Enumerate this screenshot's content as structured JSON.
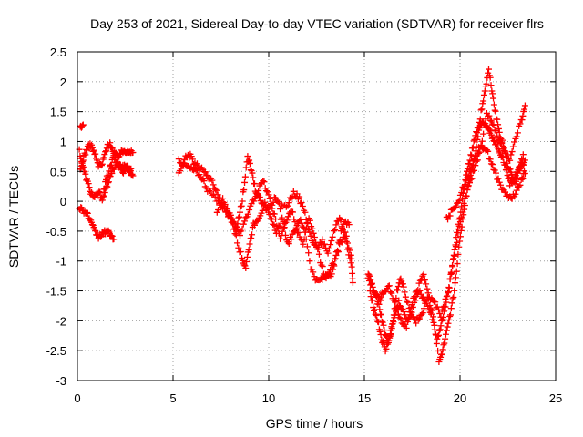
{
  "chart_data": {
    "type": "scatter",
    "title": "Day 253 of 2021, Sidereal Day-to-day VTEC variation (SDTVAR) for receiver flrs",
    "xlabel": "GPS time / hours",
    "ylabel": "SDTVAR / TECUs",
    "xlim": [
      0,
      25
    ],
    "ylim": [
      -3,
      2.5
    ],
    "xticks": [
      "0",
      "5",
      "10",
      "15",
      "20",
      "25"
    ],
    "yticks": [
      "2.5",
      "2",
      "1.5",
      "1",
      "0.5",
      "0",
      "-0.5",
      "-1",
      "-1.5",
      "-2",
      "-2.5",
      "-3"
    ],
    "grid": true,
    "marker": "plus",
    "series": [
      {
        "name": "SDTVAR",
        "color": "#ff0000",
        "tracks": [
          [
            [
              0.15,
              1.25
            ],
            [
              0.3,
              1.28
            ]
          ],
          [
            [
              0.1,
              0.85
            ],
            [
              0.3,
              0.55
            ],
            [
              0.5,
              0.35
            ],
            [
              0.7,
              0.15
            ],
            [
              0.9,
              0.05
            ],
            [
              1.1,
              0.15
            ],
            [
              1.3,
              0.05
            ],
            [
              1.5,
              0.35
            ],
            [
              1.7,
              0.55
            ],
            [
              1.9,
              0.75
            ],
            [
              2.1,
              0.62
            ],
            [
              2.3,
              0.55
            ],
            [
              2.5,
              0.62
            ],
            [
              2.7,
              0.5
            ],
            [
              2.9,
              0.45
            ]
          ],
          [
            [
              0.15,
              0.5
            ],
            [
              0.3,
              0.72
            ],
            [
              0.5,
              0.88
            ],
            [
              0.7,
              0.95
            ],
            [
              0.9,
              0.8
            ],
            [
              1.1,
              0.6
            ],
            [
              1.3,
              0.62
            ],
            [
              1.5,
              0.88
            ],
            [
              1.7,
              0.98
            ],
            [
              1.9,
              0.8
            ],
            [
              2.1,
              0.75
            ],
            [
              2.3,
              0.82
            ],
            [
              2.5,
              0.85
            ],
            [
              2.7,
              0.85
            ],
            [
              2.9,
              0.8
            ]
          ],
          [
            [
              0.1,
              -0.1
            ],
            [
              0.3,
              -0.15
            ],
            [
              0.5,
              -0.2
            ],
            [
              0.7,
              -0.35
            ],
            [
              0.9,
              -0.5
            ],
            [
              1.1,
              -0.6
            ],
            [
              1.3,
              -0.55
            ],
            [
              1.5,
              -0.5
            ],
            [
              1.7,
              -0.55
            ],
            [
              1.9,
              -0.62
            ]
          ],
          [
            [
              1.4,
              0.1
            ],
            [
              1.6,
              0.3
            ],
            [
              1.8,
              0.5
            ],
            [
              2.0,
              0.62
            ],
            [
              2.2,
              0.62
            ],
            [
              2.4,
              0.5
            ],
            [
              2.6,
              0.6
            ],
            [
              2.8,
              0.52
            ]
          ],
          [
            [
              5.3,
              0.7
            ],
            [
              5.6,
              0.6
            ],
            [
              5.9,
              0.55
            ],
            [
              6.2,
              0.5
            ],
            [
              6.5,
              0.4
            ],
            [
              6.8,
              0.2
            ],
            [
              7.2,
              0.05
            ],
            [
              7.6,
              -0.1
            ],
            [
              8.0,
              -0.25
            ],
            [
              8.3,
              -0.6
            ],
            [
              8.6,
              -0.95
            ],
            [
              8.8,
              -1.1
            ],
            [
              9.0,
              -0.7
            ],
            [
              9.2,
              -0.4
            ],
            [
              9.5,
              -0.25
            ],
            [
              9.8,
              -0.05
            ],
            [
              10.1,
              -0.3
            ],
            [
              10.4,
              -0.5
            ],
            [
              10.7,
              -0.3
            ],
            [
              11.0,
              -0.7
            ],
            [
              11.3,
              -0.55
            ],
            [
              11.6,
              -0.3
            ],
            [
              11.9,
              -0.5
            ],
            [
              12.2,
              -1.1
            ],
            [
              12.5,
              -1.35
            ],
            [
              12.8,
              -1.3
            ],
            [
              13.1,
              -1.2
            ],
            [
              13.4,
              -1.05
            ],
            [
              13.7,
              -0.75
            ],
            [
              14.0,
              -0.55
            ],
            [
              14.3,
              -0.9
            ],
            [
              14.4,
              -1.35
            ]
          ],
          [
            [
              5.3,
              0.45
            ],
            [
              5.6,
              0.72
            ],
            [
              5.9,
              0.75
            ],
            [
              6.2,
              0.6
            ],
            [
              6.5,
              0.55
            ],
            [
              6.8,
              0.4
            ],
            [
              7.1,
              0.3
            ],
            [
              7.4,
              0.05
            ],
            [
              7.7,
              -0.15
            ],
            [
              8.0,
              -0.3
            ],
            [
              8.3,
              -0.45
            ],
            [
              8.5,
              -0.2
            ],
            [
              8.7,
              0.2
            ],
            [
              8.9,
              0.75
            ],
            [
              9.1,
              0.5
            ],
            [
              9.3,
              0.2
            ],
            [
              9.5,
              0.05
            ],
            [
              9.7,
              -0.05
            ],
            [
              10.0,
              -0.15
            ],
            [
              10.3,
              0.05
            ],
            [
              10.6,
              -0.1
            ],
            [
              11.0,
              -0.05
            ],
            [
              11.3,
              0.15
            ],
            [
              11.6,
              0.05
            ],
            [
              11.9,
              -0.2
            ],
            [
              12.2,
              -0.6
            ],
            [
              12.5,
              -0.8
            ],
            [
              12.8,
              -0.65
            ],
            [
              13.1,
              -0.9
            ],
            [
              13.4,
              -0.5
            ],
            [
              13.7,
              -0.25
            ],
            [
              14.0,
              -0.6
            ],
            [
              14.3,
              -1.05
            ]
          ],
          [
            [
              7.3,
              -0.15
            ],
            [
              7.6,
              0.05
            ],
            [
              7.9,
              -0.2
            ],
            [
              8.2,
              -0.35
            ],
            [
              8.5,
              -0.55
            ],
            [
              8.8,
              -0.3
            ],
            [
              9.1,
              -0.05
            ],
            [
              9.4,
              0.15
            ],
            [
              9.7,
              0.35
            ],
            [
              10.0,
              0.1
            ],
            [
              10.3,
              -0.25
            ],
            [
              10.6,
              -0.6
            ],
            [
              10.9,
              -0.35
            ],
            [
              11.2,
              -0.15
            ],
            [
              11.5,
              -0.5
            ],
            [
              11.8,
              -0.7
            ],
            [
              12.1,
              -0.3
            ],
            [
              12.4,
              -0.6
            ],
            [
              12.7,
              -1.0
            ],
            [
              13.0,
              -1.3
            ],
            [
              13.3,
              -1.2
            ],
            [
              13.6,
              -0.8
            ],
            [
              13.9,
              -0.35
            ],
            [
              14.2,
              -0.4
            ]
          ],
          [
            [
              15.2,
              -1.2
            ],
            [
              15.4,
              -1.4
            ],
            [
              15.6,
              -1.6
            ],
            [
              15.8,
              -1.8
            ],
            [
              16.0,
              -2.1
            ],
            [
              16.2,
              -2.35
            ],
            [
              16.4,
              -2.2
            ],
            [
              16.6,
              -1.9
            ],
            [
              16.8,
              -1.7
            ],
            [
              17.0,
              -1.8
            ],
            [
              17.3,
              -2.0
            ],
            [
              17.6,
              -1.7
            ],
            [
              17.9,
              -1.5
            ],
            [
              18.2,
              -1.7
            ],
            [
              18.5,
              -1.9
            ],
            [
              18.8,
              -2.3
            ],
            [
              19.0,
              -2.1
            ],
            [
              19.2,
              -1.8
            ],
            [
              19.4,
              -1.5
            ],
            [
              19.6,
              -1.1
            ],
            [
              19.8,
              -0.6
            ],
            [
              20.0,
              -0.25
            ],
            [
              20.2,
              0.2
            ],
            [
              20.4,
              0.55
            ],
            [
              20.6,
              0.8
            ],
            [
              20.8,
              1.1
            ],
            [
              21.0,
              1.25
            ],
            [
              21.2,
              1.35
            ],
            [
              21.4,
              1.25
            ],
            [
              21.6,
              1.15
            ],
            [
              21.8,
              1.0
            ],
            [
              22.0,
              0.9
            ],
            [
              22.2,
              0.75
            ],
            [
              22.4,
              0.55
            ],
            [
              22.6,
              0.3
            ],
            [
              22.8,
              0.35
            ],
            [
              23.0,
              0.5
            ],
            [
              23.2,
              0.6
            ],
            [
              23.4,
              0.65
            ]
          ],
          [
            [
              15.3,
              -1.5
            ],
            [
              15.5,
              -1.8
            ],
            [
              15.7,
              -2.0
            ],
            [
              15.9,
              -2.3
            ],
            [
              16.1,
              -2.5
            ],
            [
              16.3,
              -2.3
            ],
            [
              16.5,
              -2.0
            ],
            [
              16.7,
              -1.5
            ],
            [
              16.9,
              -1.3
            ],
            [
              17.1,
              -1.5
            ],
            [
              17.4,
              -1.85
            ],
            [
              17.7,
              -2.0
            ],
            [
              18.0,
              -1.9
            ],
            [
              18.3,
              -1.6
            ],
            [
              18.6,
              -1.9
            ],
            [
              18.9,
              -2.7
            ],
            [
              19.1,
              -2.5
            ],
            [
              19.3,
              -2.2
            ],
            [
              19.5,
              -1.9
            ],
            [
              19.7,
              -1.5
            ],
            [
              19.9,
              -0.9
            ],
            [
              20.1,
              -0.4
            ],
            [
              20.3,
              0.05
            ],
            [
              20.5,
              0.4
            ],
            [
              20.7,
              0.65
            ],
            [
              20.9,
              1.0
            ],
            [
              21.1,
              1.5
            ],
            [
              21.3,
              1.85
            ],
            [
              21.5,
              2.2
            ],
            [
              21.7,
              1.8
            ],
            [
              21.9,
              1.4
            ],
            [
              22.1,
              1.1
            ],
            [
              22.3,
              0.9
            ],
            [
              22.5,
              0.6
            ],
            [
              22.7,
              0.45
            ],
            [
              22.9,
              0.3
            ],
            [
              23.1,
              0.55
            ],
            [
              23.3,
              0.75
            ]
          ],
          [
            [
              15.2,
              -1.3
            ],
            [
              15.5,
              -1.5
            ],
            [
              15.8,
              -1.65
            ],
            [
              16.0,
              -1.5
            ],
            [
              16.3,
              -1.45
            ],
            [
              16.6,
              -1.7
            ],
            [
              16.9,
              -2.0
            ],
            [
              17.2,
              -2.1
            ],
            [
              17.5,
              -1.7
            ],
            [
              17.8,
              -1.45
            ],
            [
              18.1,
              -1.2
            ],
            [
              18.4,
              -1.6
            ],
            [
              18.7,
              -1.7
            ],
            [
              19.0,
              -1.9
            ],
            [
              19.3,
              -1.6
            ],
            [
              19.6,
              -1.1
            ],
            [
              19.9,
              -0.55
            ],
            [
              20.2,
              -0.05
            ],
            [
              20.5,
              0.3
            ],
            [
              20.8,
              0.6
            ],
            [
              21.1,
              0.9
            ],
            [
              21.4,
              1.5
            ],
            [
              21.7,
              1.3
            ],
            [
              22.0,
              1.05
            ],
            [
              22.3,
              0.85
            ],
            [
              22.6,
              0.7
            ],
            [
              22.9,
              1.05
            ],
            [
              23.2,
              1.35
            ],
            [
              23.4,
              1.6
            ]
          ],
          [
            [
              19.3,
              -0.3
            ],
            [
              19.6,
              -0.15
            ],
            [
              19.9,
              0.0
            ],
            [
              20.2,
              0.25
            ],
            [
              20.5,
              0.5
            ],
            [
              20.8,
              0.75
            ],
            [
              21.1,
              0.95
            ],
            [
              21.4,
              0.85
            ],
            [
              21.7,
              0.6
            ],
            [
              22.0,
              0.35
            ],
            [
              22.3,
              0.15
            ],
            [
              22.6,
              0.05
            ],
            [
              22.9,
              0.1
            ],
            [
              23.2,
              0.35
            ],
            [
              23.4,
              0.5
            ]
          ]
        ]
      }
    ]
  }
}
